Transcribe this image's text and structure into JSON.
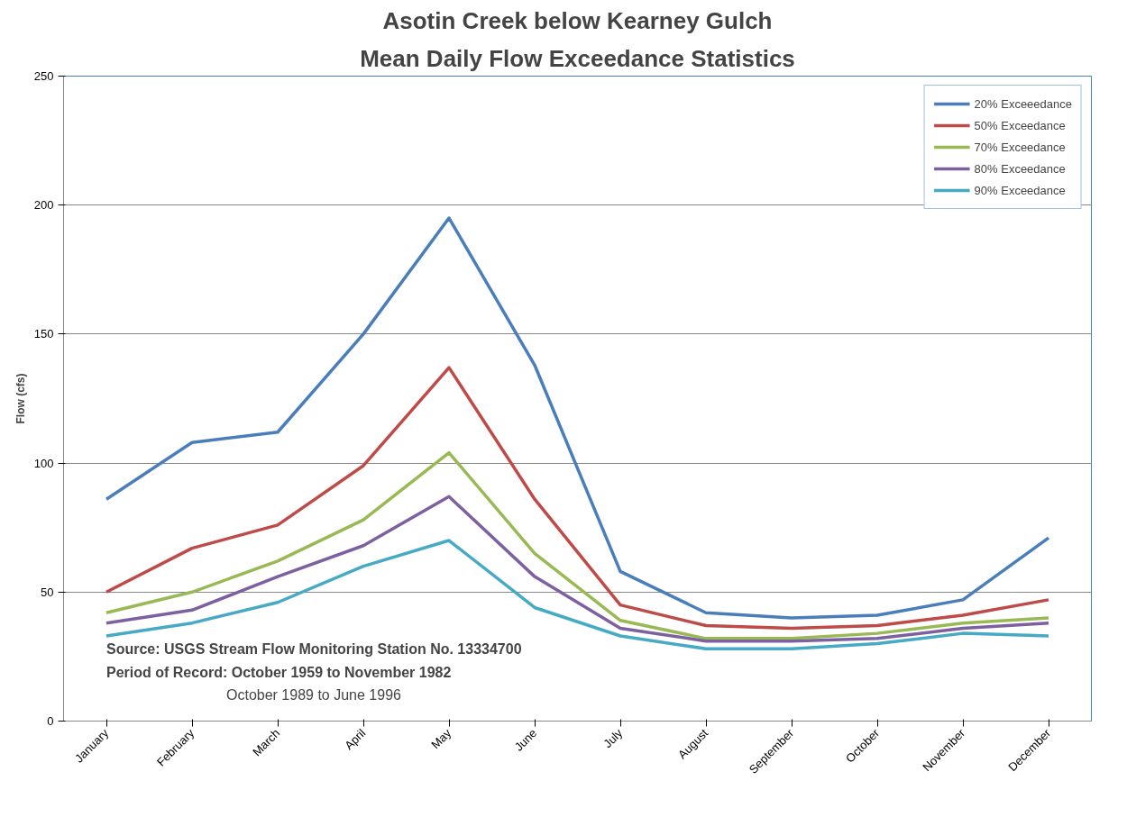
{
  "chart_data": {
    "type": "line",
    "title": "Asotin Creek below Kearney Gulch",
    "subtitle": "Mean Daily Flow Exceedance Statistics",
    "ylabel": "Flow (cfs)",
    "categories": [
      "January",
      "February",
      "March",
      "April",
      "May",
      "June",
      "July",
      "August",
      "September",
      "October",
      "November",
      "December"
    ],
    "series": [
      {
        "name": "20% Exceeedance",
        "color": "#4a7ebb",
        "values": [
          86,
          108,
          112,
          150,
          195,
          138,
          58,
          42,
          40,
          41,
          47,
          71
        ]
      },
      {
        "name": "50% Exceedance",
        "color": "#be4b48",
        "values": [
          50,
          67,
          76,
          99,
          137,
          86,
          45,
          37,
          36,
          37,
          41,
          47
        ]
      },
      {
        "name": "70% Exceedance",
        "color": "#98b954",
        "values": [
          42,
          50,
          62,
          78,
          104,
          65,
          39,
          32,
          32,
          34,
          38,
          40
        ]
      },
      {
        "name": "80% Exceedance",
        "color": "#7d60a0",
        "values": [
          38,
          43,
          56,
          68,
          87,
          56,
          36,
          31,
          31,
          32,
          36,
          38
        ]
      },
      {
        "name": "90% Exceedance",
        "color": "#46aac5",
        "values": [
          33,
          38,
          46,
          60,
          70,
          44,
          33,
          28,
          28,
          30,
          34,
          33
        ]
      }
    ],
    "ylim": [
      0,
      250
    ],
    "yticks": [
      0,
      50,
      100,
      150,
      200,
      250
    ],
    "grid": "y",
    "legend": "top right",
    "marker": "none",
    "line_style": "solid",
    "annotations": [
      "Source:  USGS Stream Flow Monitoring Station No. 13334700",
      "Period of Record: October 1959  to November 1982",
      "October 1989  to June 1996"
    ]
  }
}
